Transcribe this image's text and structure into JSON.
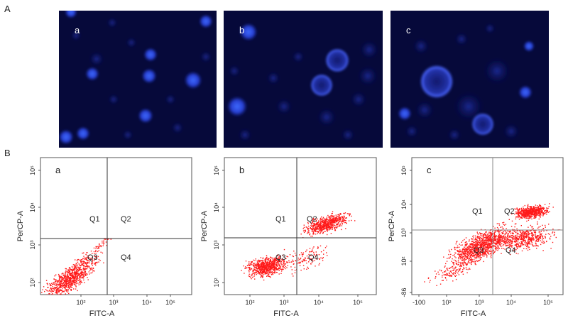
{
  "figure": {
    "section_a": {
      "label": "A",
      "images": [
        {
          "label": "a"
        },
        {
          "label": "b"
        },
        {
          "label": "c"
        }
      ]
    },
    "section_b": {
      "label": "B",
      "plots": [
        {
          "label": "a",
          "x_axis_label": "FITC-A",
          "y_axis_label": "PerCP-A",
          "quadrants": [
            "Q1",
            "Q2",
            "Q3",
            "Q4"
          ],
          "xticks": [
            "10²",
            "10³",
            "10⁴",
            "10⁵"
          ],
          "yticks": [
            "10²",
            "10³",
            "10⁴",
            "10⁵"
          ]
        },
        {
          "label": "b",
          "x_axis_label": "FITC-A",
          "y_axis_label": "PerCP-A",
          "quadrants": [
            "Q1",
            "Q2",
            "Q3",
            "Q4"
          ],
          "xticks": [
            "10²",
            "10³",
            "10⁴",
            "10⁵"
          ],
          "yticks": [
            "10²",
            "10³",
            "10⁴",
            "10⁵"
          ]
        },
        {
          "label": "c",
          "x_axis_label": "FITC-A",
          "y_axis_label": "PerCP-A",
          "quadrants": [
            "Q1",
            "Q2",
            "Q3",
            "Q4"
          ],
          "xticks": [
            "-100",
            "10²",
            "10³",
            "10⁴",
            "10⁵"
          ],
          "yticks": [
            "-86",
            "10²",
            "10³",
            "10⁴",
            "10⁵"
          ]
        }
      ]
    }
  }
}
